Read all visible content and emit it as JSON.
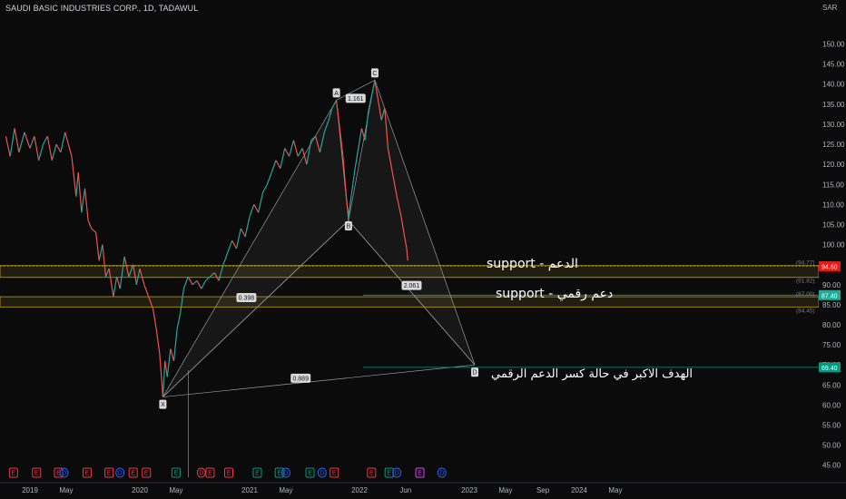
{
  "header": {
    "title": "SAUDI BASIC INDUSTRIES CORP., 1D, TADAWUL",
    "currency": "SAR"
  },
  "annotations": {
    "support_1": "support - الدعم",
    "support_2": "support - دعم رقمي",
    "target": "الهدف الاكبر في حالة كسر الدعم الرقمي"
  },
  "chart_data": {
    "type": "line",
    "symbol": "SAUDI BASIC INDUSTRIES CORP.",
    "interval": "1D",
    "exchange": "TADAWUL",
    "ylim": [
      42,
      156
    ],
    "y_ticks": [
      45,
      50,
      55,
      60,
      65,
      70,
      75,
      80,
      85,
      90,
      95,
      100,
      105,
      110,
      115,
      120,
      125,
      130,
      135,
      140,
      145,
      150
    ],
    "x_ticks": [
      {
        "t": 0.0,
        "label": "2019"
      },
      {
        "t": 0.33,
        "label": "May"
      },
      {
        "t": 1.0,
        "label": "2020"
      },
      {
        "t": 1.33,
        "label": "May"
      },
      {
        "t": 2.0,
        "label": "2021"
      },
      {
        "t": 2.33,
        "label": "May"
      },
      {
        "t": 3.0,
        "label": "2022"
      },
      {
        "t": 3.42,
        "label": "Jun"
      },
      {
        "t": 4.0,
        "label": "2023"
      },
      {
        "t": 4.33,
        "label": "May"
      },
      {
        "t": 4.67,
        "label": "Sep"
      },
      {
        "t": 5.0,
        "label": "2024"
      },
      {
        "t": 5.33,
        "label": "May"
      }
    ],
    "price_series": {
      "name": "",
      "points": [
        [
          -0.22,
          127
        ],
        [
          -0.18,
          122
        ],
        [
          -0.14,
          129
        ],
        [
          -0.1,
          123
        ],
        [
          -0.05,
          128
        ],
        [
          0,
          124
        ],
        [
          0.04,
          127
        ],
        [
          0.08,
          121
        ],
        [
          0.12,
          125
        ],
        [
          0.16,
          127
        ],
        [
          0.2,
          121
        ],
        [
          0.24,
          125
        ],
        [
          0.28,
          123
        ],
        [
          0.32,
          128
        ],
        [
          0.35,
          125
        ],
        [
          0.38,
          122
        ],
        [
          0.42,
          112
        ],
        [
          0.44,
          118
        ],
        [
          0.47,
          108
        ],
        [
          0.5,
          114
        ],
        [
          0.53,
          106
        ],
        [
          0.56,
          104
        ],
        [
          0.6,
          103
        ],
        [
          0.63,
          96
        ],
        [
          0.66,
          100
        ],
        [
          0.69,
          92
        ],
        [
          0.72,
          94
        ],
        [
          0.76,
          87
        ],
        [
          0.79,
          92
        ],
        [
          0.82,
          89
        ],
        [
          0.86,
          97
        ],
        [
          0.9,
          92
        ],
        [
          0.94,
          95
        ],
        [
          0.97,
          90
        ],
        [
          1.0,
          94
        ],
        [
          1.04,
          90
        ],
        [
          1.08,
          87
        ],
        [
          1.12,
          84
        ],
        [
          1.15,
          79
        ],
        [
          1.18,
          73
        ],
        [
          1.2,
          66
        ],
        [
          1.21,
          62
        ],
        [
          1.23,
          71
        ],
        [
          1.25,
          67
        ],
        [
          1.28,
          74
        ],
        [
          1.31,
          71
        ],
        [
          1.34,
          79
        ],
        [
          1.37,
          83
        ],
        [
          1.4,
          89
        ],
        [
          1.44,
          92
        ],
        [
          1.48,
          90
        ],
        [
          1.52,
          91
        ],
        [
          1.56,
          89
        ],
        [
          1.6,
          91
        ],
        [
          1.64,
          92
        ],
        [
          1.68,
          93
        ],
        [
          1.72,
          91
        ],
        [
          1.76,
          95
        ],
        [
          1.8,
          98
        ],
        [
          1.84,
          101
        ],
        [
          1.88,
          99
        ],
        [
          1.92,
          104
        ],
        [
          1.96,
          102
        ],
        [
          2.0,
          107
        ],
        [
          2.04,
          110
        ],
        [
          2.08,
          108
        ],
        [
          2.12,
          113
        ],
        [
          2.16,
          115
        ],
        [
          2.2,
          118
        ],
        [
          2.24,
          121
        ],
        [
          2.28,
          119
        ],
        [
          2.32,
          124
        ],
        [
          2.36,
          122
        ],
        [
          2.4,
          126
        ],
        [
          2.44,
          122
        ],
        [
          2.48,
          124
        ],
        [
          2.52,
          120
        ],
        [
          2.56,
          126
        ],
        [
          2.6,
          127
        ],
        [
          2.64,
          123
        ],
        [
          2.68,
          128
        ],
        [
          2.72,
          131
        ],
        [
          2.75,
          134
        ],
        [
          2.79,
          136
        ],
        [
          2.82,
          129
        ],
        [
          2.85,
          122
        ],
        [
          2.88,
          112
        ],
        [
          2.9,
          107
        ],
        [
          2.93,
          113
        ],
        [
          2.96,
          119
        ],
        [
          2.99,
          124
        ],
        [
          3.02,
          129
        ],
        [
          3.05,
          126
        ],
        [
          3.08,
          133
        ],
        [
          3.11,
          137
        ],
        [
          3.14,
          141
        ],
        [
          3.17,
          136
        ],
        [
          3.2,
          131
        ],
        [
          3.23,
          134
        ],
        [
          3.26,
          124
        ],
        [
          3.3,
          118
        ],
        [
          3.34,
          112
        ],
        [
          3.38,
          107
        ],
        [
          3.41,
          102
        ],
        [
          3.43,
          99
        ],
        [
          3.44,
          96
        ]
      ]
    },
    "harmonic_pattern": {
      "points": [
        {
          "label": "X",
          "t": 1.21,
          "price": 62
        },
        {
          "label": "A",
          "t": 2.79,
          "price": 136
        },
        {
          "label": "B",
          "t": 2.9,
          "price": 106
        },
        {
          "label": "C",
          "t": 3.14,
          "price": 141
        },
        {
          "label": "D",
          "t": 4.05,
          "price": 70
        }
      ],
      "ratios": [
        {
          "label": "0.398",
          "between": "XB"
        },
        {
          "label": "1.161",
          "between": "AC"
        },
        {
          "label": "2.061",
          "between": "BD"
        },
        {
          "label": "0.889",
          "between": "XD"
        }
      ]
    },
    "zones": [
      {
        "top": 94.77,
        "bottom": 91.82,
        "top_label": "(94.77)",
        "bottom_label": "(91.82)"
      },
      {
        "top": 87.0,
        "bottom": 84.45,
        "top_label": "(87.00)",
        "bottom_label": "(84.45)"
      }
    ],
    "price_levels": [
      {
        "value": 94.6,
        "label": "94.60",
        "color": "#e11d1d",
        "line_color": "#787b86",
        "text_color": "#ffffff"
      },
      {
        "value": 87.4,
        "label": "87.40",
        "color": "#22ab94",
        "line_color": "#22ab94",
        "text_color": "#ffffff"
      },
      {
        "value": 69.4,
        "label": "69.40",
        "color": "#089981",
        "line_color": "#089981",
        "text_color": "#ffffff"
      }
    ],
    "events": [
      {
        "t": -0.15,
        "letter": "E",
        "color": "#f23645"
      },
      {
        "t": 0.06,
        "letter": "E",
        "color": "#f23645"
      },
      {
        "t": 0.26,
        "letter": "E",
        "color": "#f23645"
      },
      {
        "t": 0.31,
        "letter": "D",
        "color": "#2962ff"
      },
      {
        "t": 0.52,
        "letter": "E",
        "color": "#f23645"
      },
      {
        "t": 0.72,
        "letter": "E",
        "color": "#f23645"
      },
      {
        "t": 0.82,
        "letter": "D",
        "color": "#2962ff"
      },
      {
        "t": 0.94,
        "letter": "E",
        "color": "#f23645"
      },
      {
        "t": 1.06,
        "letter": "E",
        "color": "#f23645"
      },
      {
        "t": 1.33,
        "letter": "E",
        "color": "#089981"
      },
      {
        "t": 1.56,
        "letter": "D",
        "color": "#f23645"
      },
      {
        "t": 1.64,
        "letter": "E",
        "color": "#f23645"
      },
      {
        "t": 1.81,
        "letter": "E",
        "color": "#f23645"
      },
      {
        "t": 2.07,
        "letter": "E",
        "color": "#089981"
      },
      {
        "t": 2.27,
        "letter": "E",
        "color": "#089981"
      },
      {
        "t": 2.33,
        "letter": "D",
        "color": "#2962ff"
      },
      {
        "t": 2.55,
        "letter": "E",
        "color": "#089981"
      },
      {
        "t": 2.66,
        "letter": "D",
        "color": "#2962ff"
      },
      {
        "t": 2.77,
        "letter": "E",
        "color": "#f23645"
      },
      {
        "t": 3.11,
        "letter": "E",
        "color": "#f23645"
      },
      {
        "t": 3.27,
        "letter": "E",
        "color": "#089981"
      },
      {
        "t": 3.34,
        "letter": "D",
        "color": "#2962ff"
      },
      {
        "t": 3.55,
        "letter": "E",
        "color": "#e040fb"
      },
      {
        "t": 3.75,
        "letter": "D",
        "color": "#2962ff"
      }
    ]
  }
}
